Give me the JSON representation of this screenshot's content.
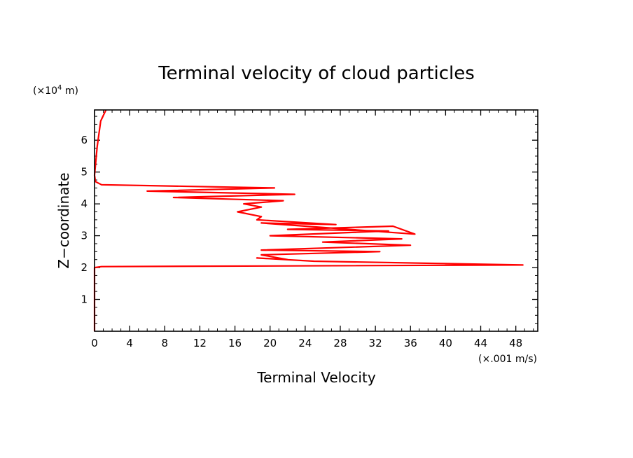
{
  "chart_data": {
    "type": "line",
    "title": "Terminal velocity of cloud particles",
    "xlabel": "Terminal Velocity",
    "ylabel": "Z−coordinate",
    "x_unit": "(×.001 m/s)",
    "y_unit_prefix": "(×10",
    "y_unit_exp": "4",
    "y_unit_suffix": " m)",
    "xlim": [
      0,
      50.5
    ],
    "ylim": [
      0,
      6.95
    ],
    "x_ticks": [
      0,
      4,
      8,
      12,
      16,
      20,
      24,
      28,
      32,
      36,
      40,
      44,
      48
    ],
    "y_ticks": [
      1,
      2,
      3,
      4,
      5,
      6
    ],
    "grid": false,
    "line_color": "#ff0000",
    "series": [
      {
        "x": [
          0,
          0,
          0,
          0.8,
          48.8,
          25,
          18.5,
          22,
          19,
          32.5,
          19,
          36,
          26,
          35,
          20,
          33.5,
          22,
          34,
          36.5,
          19,
          27.5,
          18.5,
          19,
          16.3,
          19,
          17,
          21.5,
          9,
          22.8,
          6,
          20.5,
          0.8,
          0.1,
          0,
          0.3,
          0.7,
          1.3
        ],
        "y": [
          0,
          1,
          2,
          2.03,
          2.08,
          2.2,
          2.3,
          2.25,
          2.4,
          2.5,
          2.55,
          2.7,
          2.8,
          2.9,
          3.0,
          3.15,
          3.2,
          3.3,
          3.05,
          3.4,
          3.35,
          3.5,
          3.6,
          3.75,
          3.9,
          4.0,
          4.1,
          4.2,
          4.3,
          4.4,
          4.5,
          4.6,
          4.7,
          4.9,
          5.8,
          6.6,
          6.95
        ]
      }
    ]
  }
}
